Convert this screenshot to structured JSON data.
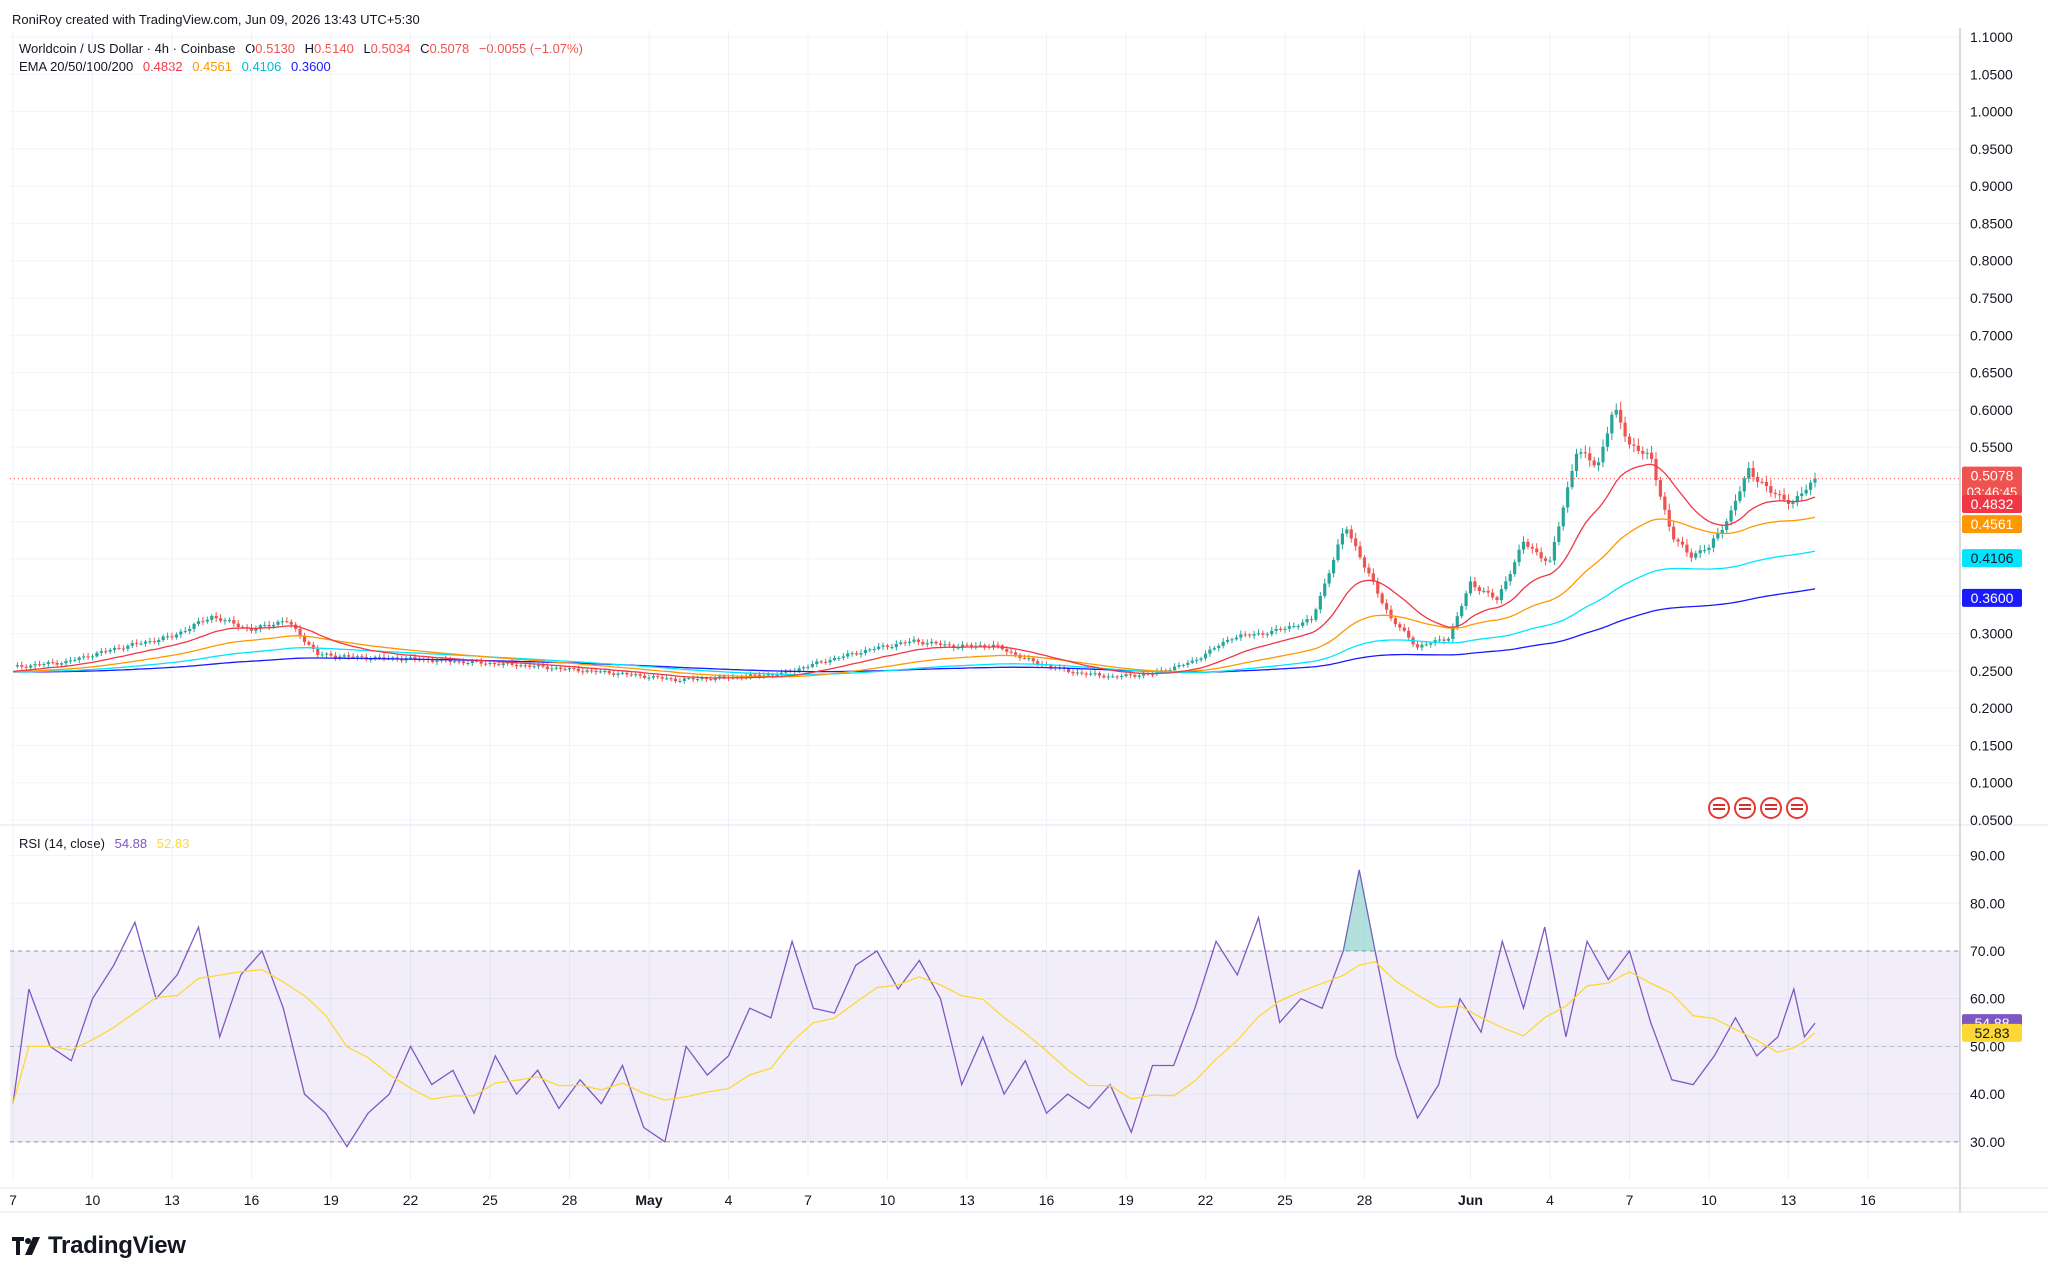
{
  "header": {
    "created_line": "RoniRoy created with TradingView.com, Jun 09, 2026 13:43 UTC+5:30"
  },
  "legend": {
    "symbol": "Worldcoin / US Dollar · 4h · Coinbase",
    "ohlc": [
      {
        "key": "O",
        "value": "0.5130"
      },
      {
        "key": "H",
        "value": "0.5140"
      },
      {
        "key": "L",
        "value": "0.5034"
      },
      {
        "key": "C",
        "value": "0.5078"
      }
    ],
    "change": "−0.0055 (−1.07%)",
    "ema_label": "EMA 20/50/100/200",
    "ema_values": [
      "0.4832",
      "0.4561",
      "0.4106",
      "0.3600"
    ],
    "rsi_label": "RSI (14, close)",
    "rsi_values": [
      "54.88",
      "52.83"
    ]
  },
  "colors": {
    "up": "#26a69a",
    "down": "#ef5350",
    "ema20": "#f23645",
    "ema50": "#ff9800",
    "ema100": "#00e5ff",
    "ema200": "#1a1aff",
    "rsi": "#7e57c2",
    "rsi_ma": "#fdd835",
    "grid": "#f0f3fa",
    "text": "#131722"
  },
  "price_labels": [
    {
      "text": "0.5078",
      "sub": "03:46:45",
      "bg": "#ef5350",
      "value": 0.5078
    },
    {
      "text": "0.4832",
      "bg": "#f23645",
      "value": 0.4832
    },
    {
      "text": "0.4561",
      "bg": "#ff9800",
      "value": 0.4561
    },
    {
      "text": "0.4106",
      "bg": "#00e5ff",
      "value": 0.4106
    },
    {
      "text": "0.3600",
      "bg": "#1a1aff",
      "value": 0.36
    }
  ],
  "rsi_labels": [
    {
      "text": "54.88",
      "bg": "#7e57c2",
      "value": 54.88
    },
    {
      "text": "52.83",
      "bg": "#fdd835",
      "value": 52.83
    }
  ],
  "branding": {
    "logo_text": "TradingView"
  },
  "chart_data": {
    "type": "candlestick",
    "title": "Worldcoin / US Dollar · 4h · Coinbase",
    "price_axis": {
      "ticks": [
        "1.1000",
        "1.0500",
        "1.0000",
        "0.9500",
        "0.9000",
        "0.8500",
        "0.8000",
        "0.7500",
        "0.7000",
        "0.6500",
        "0.6000",
        "0.5500",
        "0.5000",
        "0.4500",
        "0.4000",
        "0.3500",
        "0.3000",
        "0.2500",
        "0.2000",
        "0.1500",
        "0.1000",
        "0.0500"
      ],
      "ylim": [
        0.05,
        1.1
      ]
    },
    "rsi_axis": {
      "ticks": [
        "90.00",
        "80.00",
        "70.00",
        "60.00",
        "50.00",
        "40.00",
        "30.00"
      ],
      "ylim": [
        22,
        92
      ],
      "band": [
        30,
        70
      ]
    },
    "time_axis": {
      "labels": [
        "7",
        "10",
        "13",
        "16",
        "19",
        "22",
        "25",
        "28",
        "May",
        "4",
        "7",
        "10",
        "13",
        "16",
        "19",
        "22",
        "25",
        "28",
        "Jun",
        "4",
        "7",
        "10",
        "13",
        "16"
      ],
      "days_from_apr7": [
        0,
        3,
        6,
        9,
        12,
        15,
        18,
        21,
        24,
        27,
        30,
        33,
        36,
        39,
        42,
        45,
        48,
        51,
        55,
        58,
        61,
        64,
        67,
        70
      ]
    },
    "price_series": [
      {
        "day": 0,
        "close": 0.255
      },
      {
        "day": 2,
        "close": 0.262
      },
      {
        "day": 4,
        "close": 0.281
      },
      {
        "day": 6,
        "close": 0.296
      },
      {
        "day": 7.5,
        "close": 0.323
      },
      {
        "day": 9,
        "close": 0.305
      },
      {
        "day": 10.3,
        "close": 0.318
      },
      {
        "day": 11.5,
        "close": 0.272
      },
      {
        "day": 13,
        "close": 0.268
      },
      {
        "day": 15,
        "close": 0.266
      },
      {
        "day": 17,
        "close": 0.262
      },
      {
        "day": 19,
        "close": 0.258
      },
      {
        "day": 21,
        "close": 0.252
      },
      {
        "day": 23,
        "close": 0.246
      },
      {
        "day": 25,
        "close": 0.238
      },
      {
        "day": 27,
        "close": 0.241
      },
      {
        "day": 29,
        "close": 0.246
      },
      {
        "day": 30.5,
        "close": 0.262
      },
      {
        "day": 32.5,
        "close": 0.28
      },
      {
        "day": 34,
        "close": 0.29
      },
      {
        "day": 35.5,
        "close": 0.283
      },
      {
        "day": 37,
        "close": 0.284
      },
      {
        "day": 38.5,
        "close": 0.262
      },
      {
        "day": 40,
        "close": 0.248
      },
      {
        "day": 41.5,
        "close": 0.242
      },
      {
        "day": 43,
        "close": 0.246
      },
      {
        "day": 44.5,
        "close": 0.262
      },
      {
        "day": 46,
        "close": 0.295
      },
      {
        "day": 47.5,
        "close": 0.302
      },
      {
        "day": 49,
        "close": 0.318
      },
      {
        "day": 50.3,
        "close": 0.445
      },
      {
        "day": 51,
        "close": 0.39
      },
      {
        "day": 52,
        "close": 0.32
      },
      {
        "day": 53,
        "close": 0.282
      },
      {
        "day": 54.2,
        "close": 0.295
      },
      {
        "day": 55,
        "close": 0.368
      },
      {
        "day": 56,
        "close": 0.345
      },
      {
        "day": 57,
        "close": 0.422
      },
      {
        "day": 58,
        "close": 0.395
      },
      {
        "day": 59,
        "close": 0.545
      },
      {
        "day": 59.8,
        "close": 0.525
      },
      {
        "day": 60.4,
        "close": 0.602
      },
      {
        "day": 61,
        "close": 0.555
      },
      {
        "day": 61.8,
        "close": 0.535
      },
      {
        "day": 62.6,
        "close": 0.43
      },
      {
        "day": 63.3,
        "close": 0.405
      },
      {
        "day": 64,
        "close": 0.415
      },
      {
        "day": 64.8,
        "close": 0.46
      },
      {
        "day": 65.5,
        "close": 0.52
      },
      {
        "day": 66.3,
        "close": 0.49
      },
      {
        "day": 67.2,
        "close": 0.475
      },
      {
        "day": 68,
        "close": 0.5078
      }
    ],
    "ema_series": [
      {
        "name": "EMA 20",
        "last": 0.4832
      },
      {
        "name": "EMA 50",
        "last": 0.4561
      },
      {
        "name": "EMA 100",
        "last": 0.4106
      },
      {
        "name": "EMA 200",
        "last": 0.36
      }
    ],
    "rsi_series": [
      {
        "day": 0,
        "rsi": 38
      },
      {
        "day": 0.6,
        "rsi": 62
      },
      {
        "day": 1.4,
        "rsi": 50
      },
      {
        "day": 2.2,
        "rsi": 47
      },
      {
        "day": 3,
        "rsi": 60
      },
      {
        "day": 3.8,
        "rsi": 67
      },
      {
        "day": 4.6,
        "rsi": 76
      },
      {
        "day": 5.4,
        "rsi": 60
      },
      {
        "day": 6.2,
        "rsi": 65
      },
      {
        "day": 7,
        "rsi": 75
      },
      {
        "day": 7.8,
        "rsi": 52
      },
      {
        "day": 8.6,
        "rsi": 65
      },
      {
        "day": 9.4,
        "rsi": 70
      },
      {
        "day": 10.2,
        "rsi": 58
      },
      {
        "day": 11,
        "rsi": 40
      },
      {
        "day": 11.8,
        "rsi": 36
      },
      {
        "day": 12.6,
        "rsi": 29
      },
      {
        "day": 13.4,
        "rsi": 36
      },
      {
        "day": 14.2,
        "rsi": 40
      },
      {
        "day": 15,
        "rsi": 50
      },
      {
        "day": 15.8,
        "rsi": 42
      },
      {
        "day": 16.6,
        "rsi": 45
      },
      {
        "day": 17.4,
        "rsi": 36
      },
      {
        "day": 18.2,
        "rsi": 48
      },
      {
        "day": 19,
        "rsi": 40
      },
      {
        "day": 19.8,
        "rsi": 45
      },
      {
        "day": 20.6,
        "rsi": 37
      },
      {
        "day": 21.4,
        "rsi": 43
      },
      {
        "day": 22.2,
        "rsi": 38
      },
      {
        "day": 23,
        "rsi": 46
      },
      {
        "day": 23.8,
        "rsi": 33
      },
      {
        "day": 24.6,
        "rsi": 30
      },
      {
        "day": 25.4,
        "rsi": 50
      },
      {
        "day": 26.2,
        "rsi": 44
      },
      {
        "day": 27,
        "rsi": 48
      },
      {
        "day": 27.8,
        "rsi": 58
      },
      {
        "day": 28.6,
        "rsi": 56
      },
      {
        "day": 29.4,
        "rsi": 72
      },
      {
        "day": 30.2,
        "rsi": 58
      },
      {
        "day": 31,
        "rsi": 57
      },
      {
        "day": 31.8,
        "rsi": 67
      },
      {
        "day": 32.6,
        "rsi": 70
      },
      {
        "day": 33.4,
        "rsi": 62
      },
      {
        "day": 34.2,
        "rsi": 68
      },
      {
        "day": 35,
        "rsi": 60
      },
      {
        "day": 35.8,
        "rsi": 42
      },
      {
        "day": 36.6,
        "rsi": 52
      },
      {
        "day": 37.4,
        "rsi": 40
      },
      {
        "day": 38.2,
        "rsi": 47
      },
      {
        "day": 39,
        "rsi": 36
      },
      {
        "day": 39.8,
        "rsi": 40
      },
      {
        "day": 40.6,
        "rsi": 37
      },
      {
        "day": 41.4,
        "rsi": 42
      },
      {
        "day": 42.2,
        "rsi": 32
      },
      {
        "day": 43,
        "rsi": 46
      },
      {
        "day": 43.8,
        "rsi": 46
      },
      {
        "day": 44.6,
        "rsi": 58
      },
      {
        "day": 45.4,
        "rsi": 72
      },
      {
        "day": 46.2,
        "rsi": 65
      },
      {
        "day": 47,
        "rsi": 77
      },
      {
        "day": 47.8,
        "rsi": 55
      },
      {
        "day": 48.6,
        "rsi": 60
      },
      {
        "day": 49.4,
        "rsi": 58
      },
      {
        "day": 50.2,
        "rsi": 70
      },
      {
        "day": 50.8,
        "rsi": 87
      },
      {
        "day": 51.4,
        "rsi": 70
      },
      {
        "day": 52.2,
        "rsi": 48
      },
      {
        "day": 53,
        "rsi": 35
      },
      {
        "day": 53.8,
        "rsi": 42
      },
      {
        "day": 54.6,
        "rsi": 60
      },
      {
        "day": 55.4,
        "rsi": 53
      },
      {
        "day": 56.2,
        "rsi": 72
      },
      {
        "day": 57,
        "rsi": 58
      },
      {
        "day": 57.8,
        "rsi": 75
      },
      {
        "day": 58.6,
        "rsi": 52
      },
      {
        "day": 59.4,
        "rsi": 72
      },
      {
        "day": 60.2,
        "rsi": 64
      },
      {
        "day": 61,
        "rsi": 70
      },
      {
        "day": 61.8,
        "rsi": 55
      },
      {
        "day": 62.6,
        "rsi": 43
      },
      {
        "day": 63.4,
        "rsi": 42
      },
      {
        "day": 64.2,
        "rsi": 48
      },
      {
        "day": 65,
        "rsi": 56
      },
      {
        "day": 65.8,
        "rsi": 48
      },
      {
        "day": 66.6,
        "rsi": 52
      },
      {
        "day": 67.2,
        "rsi": 62
      },
      {
        "day": 67.6,
        "rsi": 52
      },
      {
        "day": 68,
        "rsi": 54.88
      }
    ],
    "rsi_ma_last": 52.83
  }
}
